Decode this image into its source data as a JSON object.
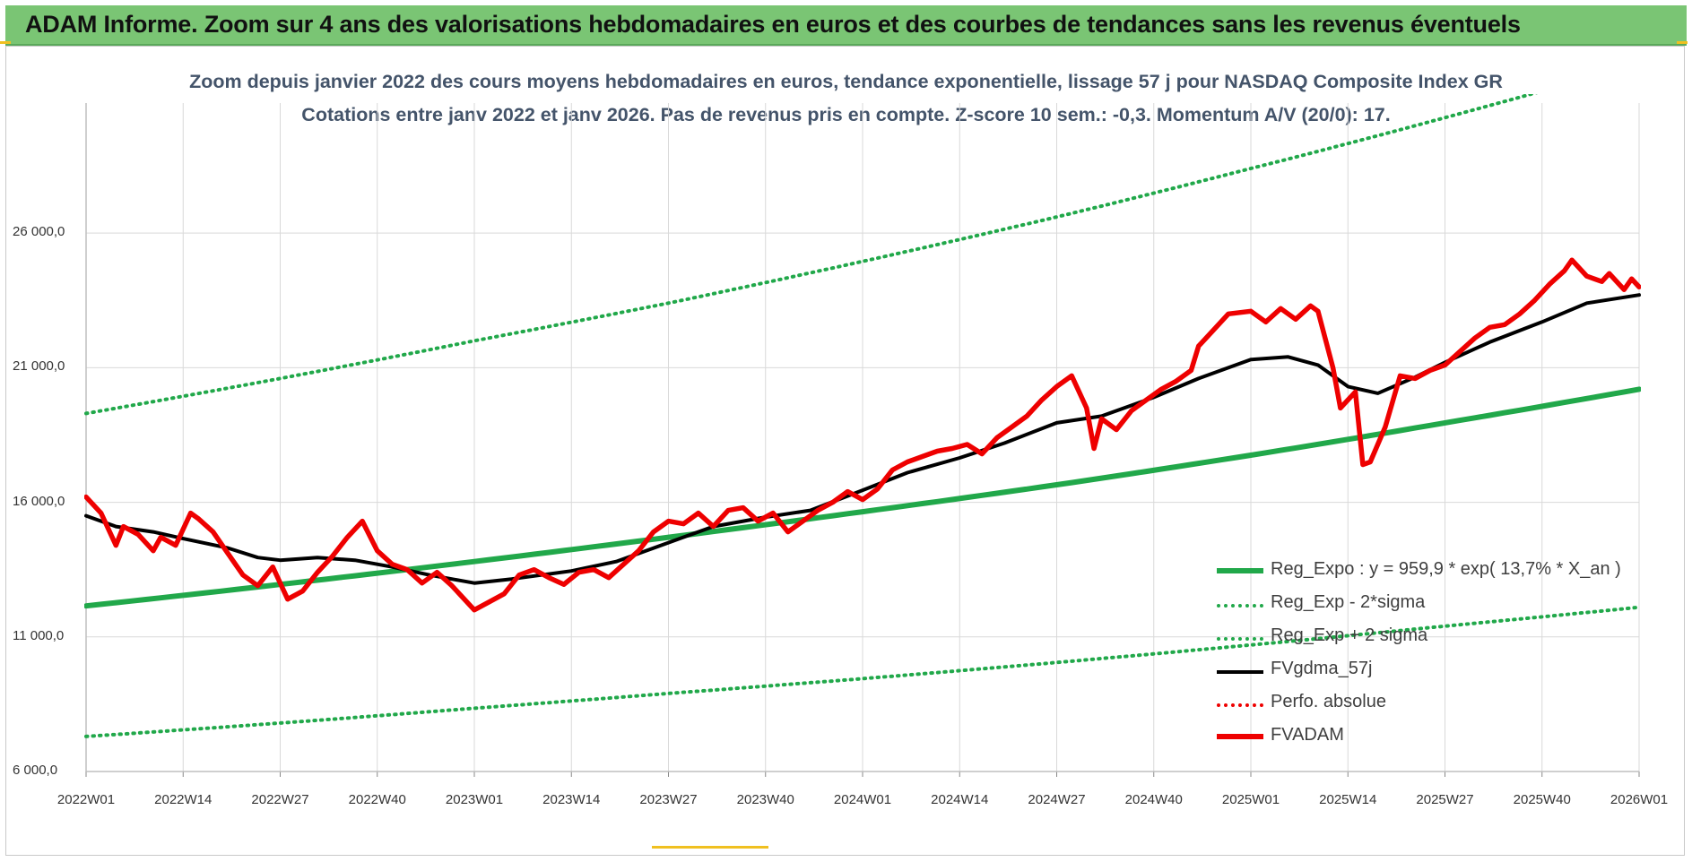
{
  "banner": {
    "title": "ADAM Informe. Zoom sur 4 ans des valorisations hebdomadaires en euros et des courbes de tendances sans les revenus éventuels"
  },
  "chart": {
    "subtitle_line1": "Zoom depuis janvier 2022 des cours moyens hebdomadaires en euros, tendance exponentielle, lissage 57 j pour NASDAQ Composite Index GR",
    "subtitle_line2": "Cotations entre janv 2022 et janv 2026. Pas de revenus pris en compte. Z-score 10 sem.: -0,3. Momentum A/V (20/0): 17."
  },
  "legend": {
    "items": [
      {
        "label": "Reg_Expo : y = 959,9 * exp( 13,7% *  X_an )",
        "style": "solid-green-thick"
      },
      {
        "label": "Reg_Exp - 2*sigma",
        "style": "dotted-green"
      },
      {
        "label": "Reg_Exp + 2 sigma",
        "style": "dotted-green"
      },
      {
        "label": "FVgdma_57j",
        "style": "solid-black"
      },
      {
        "label": "Perfo. absolue",
        "style": "dotted-red"
      },
      {
        "label": "FVADAM",
        "style": "solid-red-thick"
      }
    ]
  },
  "colors": {
    "green": "#21a84a",
    "black": "#000000",
    "red": "#ee0000",
    "grid": "#d9d9d9",
    "banner": "#7ac574"
  },
  "chart_data": {
    "type": "line",
    "title": "Zoom depuis janvier 2022 des cours moyens hebdomadaires en euros, tendance exponentielle, lissage 57 j pour NASDAQ Composite Index GR",
    "xlabel": "",
    "ylabel": "",
    "x_ticks": [
      "2022W01",
      "2022W14",
      "2022W27",
      "2022W40",
      "2023W01",
      "2023W14",
      "2023W27",
      "2023W40",
      "2024W01",
      "2024W14",
      "2024W27",
      "2024W40",
      "2025W01",
      "2025W14",
      "2025W27",
      "2025W40",
      "2026W01"
    ],
    "y_ticks": [
      "6 000,0",
      "11 000,0",
      "16 000,0",
      "21 000,0",
      "26 000,0"
    ],
    "ylim": [
      6000,
      29500
    ],
    "grid": true,
    "legend_position": "bottom-right",
    "series": [
      {
        "name": "Reg_Expo : y = 959,9 * exp( 13,7% *  X_an )",
        "style": "solid",
        "points": [
          [
            "2022W01",
            12150
          ],
          [
            "2022W27",
            12950
          ],
          [
            "2023W01",
            13800
          ],
          [
            "2023W27",
            14700
          ],
          [
            "2024W01",
            15650
          ],
          [
            "2024W27",
            16650
          ],
          [
            "2025W01",
            17750
          ],
          [
            "2025W27",
            18950
          ],
          [
            "2026W01",
            20200
          ]
        ]
      },
      {
        "name": "Reg_Exp - 2*sigma",
        "style": "dotted",
        "points": [
          [
            "2022W01",
            7300
          ],
          [
            "2022W27",
            7800
          ],
          [
            "2023W01",
            8350
          ],
          [
            "2023W27",
            8900
          ],
          [
            "2024W01",
            9450
          ],
          [
            "2024W27",
            10050
          ],
          [
            "2025W01",
            10700
          ],
          [
            "2025W27",
            11400
          ],
          [
            "2026W01",
            12100
          ]
        ]
      },
      {
        "name": "Reg_Exp + 2 sigma",
        "style": "dotted",
        "points": [
          [
            "2022W01",
            19300
          ],
          [
            "2022W27",
            20600
          ],
          [
            "2023W01",
            22000
          ],
          [
            "2023W27",
            23400
          ],
          [
            "2024W01",
            24950
          ],
          [
            "2024W27",
            26600
          ],
          [
            "2025W01",
            28400
          ],
          [
            "2026W01",
            32300
          ]
        ]
      },
      {
        "name": "FVgdma_57j",
        "style": "solid",
        "points": [
          [
            "2022W01",
            15500
          ],
          [
            "2022W05",
            15100
          ],
          [
            "2022W10",
            14900
          ],
          [
            "2022W14",
            14650
          ],
          [
            "2022W20",
            14300
          ],
          [
            "2022W24",
            13950
          ],
          [
            "2022W27",
            13850
          ],
          [
            "2022W32",
            13950
          ],
          [
            "2022W37",
            13850
          ],
          [
            "2022W42",
            13600
          ],
          [
            "2022W47",
            13300
          ],
          [
            "2022W51",
            13100
          ],
          [
            "2023W01",
            13000
          ],
          [
            "2023W06",
            13150
          ],
          [
            "2023W14",
            13450
          ],
          [
            "2023W20",
            13800
          ],
          [
            "2023W27",
            14500
          ],
          [
            "2023W33",
            15100
          ],
          [
            "2023W40",
            15450
          ],
          [
            "2023W46",
            15700
          ],
          [
            "2024W01",
            16450
          ],
          [
            "2024W07",
            17100
          ],
          [
            "2024W14",
            17650
          ],
          [
            "2024W20",
            18200
          ],
          [
            "2024W27",
            18950
          ],
          [
            "2024W33",
            19200
          ],
          [
            "2024W40",
            19900
          ],
          [
            "2024W46",
            20600
          ],
          [
            "2025W01",
            21300
          ],
          [
            "2025W06",
            21400
          ],
          [
            "2025W10",
            21100
          ],
          [
            "2025W14",
            20300
          ],
          [
            "2025W18",
            20050
          ],
          [
            "2025W23",
            20650
          ],
          [
            "2025W27",
            21200
          ],
          [
            "2025W33",
            21950
          ],
          [
            "2025W40",
            22700
          ],
          [
            "2025W46",
            23400
          ],
          [
            "2026W01",
            23700
          ]
        ]
      },
      {
        "name": "Perfo. absolue",
        "style": "dotted",
        "points": []
      },
      {
        "name": "FVADAM",
        "style": "solid",
        "points": [
          [
            "2022W01",
            16200
          ],
          [
            "2022W03",
            15600
          ],
          [
            "2022W05",
            14400
          ],
          [
            "2022W06",
            15100
          ],
          [
            "2022W08",
            14800
          ],
          [
            "2022W10",
            14200
          ],
          [
            "2022W11",
            14700
          ],
          [
            "2022W13",
            14400
          ],
          [
            "2022W15",
            15600
          ],
          [
            "2022W16",
            15400
          ],
          [
            "2022W18",
            14900
          ],
          [
            "2022W20",
            14100
          ],
          [
            "2022W22",
            13300
          ],
          [
            "2022W24",
            12900
          ],
          [
            "2022W26",
            13600
          ],
          [
            "2022W28",
            12400
          ],
          [
            "2022W30",
            12700
          ],
          [
            "2022W32",
            13400
          ],
          [
            "2022W34",
            14000
          ],
          [
            "2022W36",
            14700
          ],
          [
            "2022W38",
            15300
          ],
          [
            "2022W40",
            14200
          ],
          [
            "2022W42",
            13700
          ],
          [
            "2022W44",
            13500
          ],
          [
            "2022W46",
            13000
          ],
          [
            "2022W48",
            13400
          ],
          [
            "2022W50",
            12900
          ],
          [
            "2023W01",
            12000
          ],
          [
            "2023W03",
            12300
          ],
          [
            "2023W05",
            12600
          ],
          [
            "2023W07",
            13300
          ],
          [
            "2023W09",
            13500
          ],
          [
            "2023W11",
            13200
          ],
          [
            "2023W13",
            12950
          ],
          [
            "2023W15",
            13400
          ],
          [
            "2023W17",
            13500
          ],
          [
            "2023W19",
            13200
          ],
          [
            "2023W21",
            13700
          ],
          [
            "2023W23",
            14200
          ],
          [
            "2023W25",
            14900
          ],
          [
            "2023W27",
            15300
          ],
          [
            "2023W29",
            15200
          ],
          [
            "2023W31",
            15600
          ],
          [
            "2023W33",
            15100
          ],
          [
            "2023W35",
            15700
          ],
          [
            "2023W37",
            15800
          ],
          [
            "2023W39",
            15300
          ],
          [
            "2023W41",
            15600
          ],
          [
            "2023W43",
            14900
          ],
          [
            "2023W45",
            15300
          ],
          [
            "2023W47",
            15700
          ],
          [
            "2023W49",
            16000
          ],
          [
            "2023W51",
            16400
          ],
          [
            "2024W01",
            16100
          ],
          [
            "2024W03",
            16500
          ],
          [
            "2024W05",
            17200
          ],
          [
            "2024W07",
            17500
          ],
          [
            "2024W09",
            17700
          ],
          [
            "2024W11",
            17900
          ],
          [
            "2024W13",
            18000
          ],
          [
            "2024W15",
            18150
          ],
          [
            "2024W17",
            17800
          ],
          [
            "2024W19",
            18400
          ],
          [
            "2024W21",
            18800
          ],
          [
            "2024W23",
            19200
          ],
          [
            "2024W25",
            19800
          ],
          [
            "2024W27",
            20300
          ],
          [
            "2024W29",
            20700
          ],
          [
            "2024W31",
            19500
          ],
          [
            "2024W32",
            18000
          ],
          [
            "2024W33",
            19100
          ],
          [
            "2024W35",
            18700
          ],
          [
            "2024W37",
            19400
          ],
          [
            "2024W39",
            19800
          ],
          [
            "2024W41",
            20200
          ],
          [
            "2024W43",
            20500
          ],
          [
            "2024W45",
            20900
          ],
          [
            "2024W46",
            21800
          ],
          [
            "2024W48",
            22400
          ],
          [
            "2024W50",
            23000
          ],
          [
            "2025W01",
            23100
          ],
          [
            "2025W03",
            22700
          ],
          [
            "2025W05",
            23200
          ],
          [
            "2025W07",
            22800
          ],
          [
            "2025W09",
            23300
          ],
          [
            "2025W10",
            23100
          ],
          [
            "2025W12",
            21000
          ],
          [
            "2025W13",
            19500
          ],
          [
            "2025W15",
            20100
          ],
          [
            "2025W16",
            17400
          ],
          [
            "2025W17",
            17500
          ],
          [
            "2025W19",
            18800
          ],
          [
            "2025W21",
            20700
          ],
          [
            "2025W23",
            20600
          ],
          [
            "2025W25",
            20900
          ],
          [
            "2025W27",
            21100
          ],
          [
            "2025W29",
            21600
          ],
          [
            "2025W31",
            22100
          ],
          [
            "2025W33",
            22500
          ],
          [
            "2025W35",
            22600
          ],
          [
            "2025W37",
            23000
          ],
          [
            "2025W39",
            23500
          ],
          [
            "2025W41",
            24100
          ],
          [
            "2025W43",
            24600
          ],
          [
            "2025W44",
            25000
          ],
          [
            "2025W46",
            24400
          ],
          [
            "2025W48",
            24200
          ],
          [
            "2025W49",
            24500
          ],
          [
            "2025W51",
            23900
          ],
          [
            "2025W52",
            24300
          ],
          [
            "2026W01",
            24000
          ]
        ]
      }
    ]
  }
}
